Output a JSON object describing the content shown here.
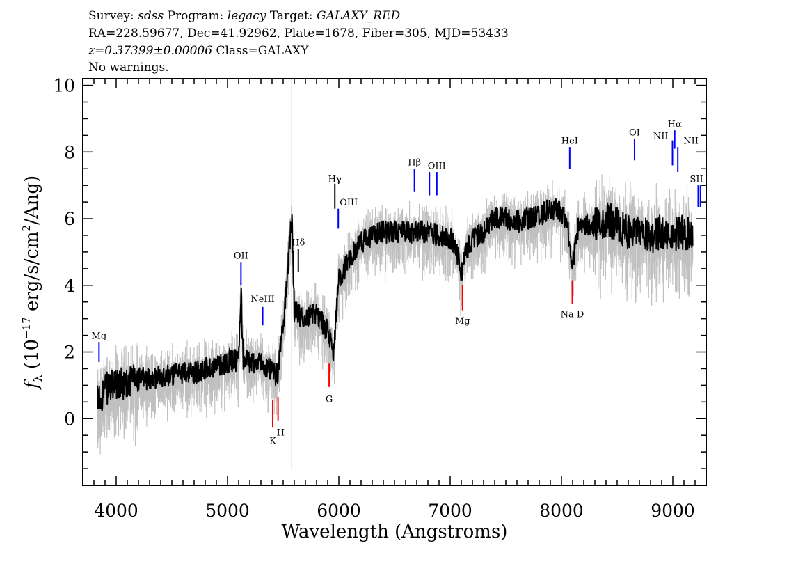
{
  "header": {
    "survey_label": "Survey: ",
    "survey": "sdss",
    "program_label": " Program: ",
    "program": "legacy",
    "target_label": " Target: ",
    "target": "GALAXY_RED",
    "coords": "RA=228.59677, Dec=41.92962, Plate=1678, Fiber=305, MJD=53433",
    "redshift": "z=0.37399±0.00006",
    "class": " Class=GALAXY",
    "warnings": "No warnings."
  },
  "chart_data": {
    "type": "line",
    "xlabel": "Wavelength (Angstroms)",
    "ylabel": {
      "f": "f",
      "sub": "λ",
      "pre": " (10",
      "exp": "−17",
      "mid": " erg/s/cm",
      "exp2": "2",
      "post": "/Ang)"
    },
    "xlim": [
      3700,
      9300
    ],
    "ylim": [
      -2,
      10.2
    ],
    "xticks": [
      4000,
      5000,
      6000,
      7000,
      8000,
      9000
    ],
    "yticks": [
      0,
      2,
      4,
      6,
      8,
      10
    ],
    "grid": false,
    "colors": {
      "flux": "#000000",
      "error": "#c0c0c0",
      "emission": "#0000ff",
      "absorption": "#ff0000",
      "other": "#000000"
    },
    "series": [
      {
        "role": "flux",
        "x": [
          3830,
          3900,
          4000,
          4100,
          4200,
          4300,
          4400,
          4500,
          4600,
          4700,
          4800,
          4900,
          5000,
          5100,
          5121,
          5140,
          5200,
          5300,
          5400,
          5450,
          5500,
          5577,
          5600,
          5700,
          5800,
          5900,
          5950,
          6000,
          6100,
          6200,
          6300,
          6400,
          6500,
          6600,
          6700,
          6800,
          6900,
          7000,
          7050,
          7100,
          7150,
          7200,
          7300,
          7400,
          7500,
          7600,
          7700,
          7800,
          7900,
          8000,
          8050,
          8100,
          8150,
          8200,
          8300,
          8400,
          8500,
          8600,
          8700,
          8800,
          8900,
          9000,
          9100,
          9180
        ],
        "y": [
          0.5,
          0.9,
          1.0,
          1.1,
          1.2,
          1.2,
          1.3,
          1.3,
          1.4,
          1.4,
          1.5,
          1.6,
          1.7,
          1.8,
          3.9,
          1.8,
          1.7,
          1.7,
          1.4,
          1.3,
          2.8,
          6.1,
          3.2,
          3.0,
          3.2,
          2.6,
          2.0,
          4.2,
          4.8,
          5.3,
          5.5,
          5.6,
          5.6,
          5.6,
          5.6,
          5.6,
          5.5,
          5.4,
          5.2,
          4.4,
          5.1,
          5.4,
          5.6,
          6.0,
          6.0,
          5.9,
          6.0,
          6.1,
          6.3,
          6.2,
          5.8,
          4.6,
          5.7,
          5.8,
          5.8,
          6.0,
          5.8,
          5.6,
          5.7,
          5.5,
          5.6,
          5.5,
          5.6,
          5.5
        ]
      }
    ],
    "lines": [
      {
        "label": "Mg",
        "wave": 3846,
        "kind": "emission",
        "top": 2.3,
        "bottom": 1.7,
        "label_y": 2.5
      },
      {
        "label": "OII",
        "wave": 5121,
        "kind": "emission",
        "top": 4.7,
        "bottom": 4.0,
        "label_y": 4.9
      },
      {
        "label": "NeIII",
        "wave": 5316,
        "kind": "emission",
        "top": 3.35,
        "bottom": 2.8,
        "label_y": 3.6
      },
      {
        "label": "K",
        "wave": 5406,
        "kind": "absorption",
        "top": 0.55,
        "bottom": -0.25,
        "label_y": -0.65
      },
      {
        "label": "H",
        "wave": 5454,
        "kind": "absorption",
        "top": 0.65,
        "bottom": -0.05,
        "label_y": -0.4
      },
      {
        "label": "Hδ",
        "wave": 5636,
        "kind": "other",
        "top": 5.1,
        "bottom": 4.4,
        "label_y": 5.3
      },
      {
        "label": "G",
        "wave": 5913,
        "kind": "absorption",
        "top": 1.65,
        "bottom": 0.95,
        "label_y": 0.6
      },
      {
        "label": "Hγ",
        "wave": 5964,
        "kind": "other",
        "top": 7.05,
        "bottom": 6.3,
        "label_y": 7.2
      },
      {
        "label": "OIII",
        "wave": 5995,
        "kind": "emission",
        "top": 6.3,
        "bottom": 5.7,
        "label_y": 6.5
      },
      {
        "label": "Hβ",
        "wave": 6679,
        "kind": "emission",
        "top": 7.5,
        "bottom": 6.8,
        "label_y": 7.7
      },
      {
        "label": "",
        "wave": 6814,
        "kind": "emission",
        "top": 7.4,
        "bottom": 6.7,
        "label_y": 7.6
      },
      {
        "label": "OIII",
        "wave": 6880,
        "kind": "emission",
        "top": 7.4,
        "bottom": 6.7,
        "label_y": 7.6
      },
      {
        "label": "Mg",
        "wave": 7111,
        "kind": "absorption",
        "top": 4.0,
        "bottom": 3.25,
        "label_y": 2.95
      },
      {
        "label": "HeI",
        "wave": 8074,
        "kind": "emission",
        "top": 8.15,
        "bottom": 7.5,
        "label_y": 8.35
      },
      {
        "label": "Na D",
        "wave": 8097,
        "kind": "absorption",
        "top": 4.15,
        "bottom": 3.45,
        "label_y": 3.15
      },
      {
        "label": "OI",
        "wave": 8656,
        "kind": "emission",
        "top": 8.4,
        "bottom": 7.75,
        "label_y": 8.6
      },
      {
        "label": "NII",
        "wave": 8997,
        "kind": "emission",
        "top": 8.35,
        "bottom": 7.6,
        "label_y": 8.5
      },
      {
        "label": "Hα",
        "wave": 9017,
        "kind": "emission",
        "top": 8.65,
        "bottom": 8.1,
        "label_y": 8.85
      },
      {
        "label": "NII",
        "wave": 9045,
        "kind": "emission",
        "top": 8.15,
        "bottom": 7.4,
        "label_y": 8.35
      },
      {
        "label": "SII",
        "wave": 9228,
        "kind": "emission",
        "top": 7.0,
        "bottom": 6.35,
        "label_y": 7.2
      },
      {
        "label": "",
        "wave": 9248,
        "kind": "emission",
        "top": 7.0,
        "bottom": 6.35,
        "label_y": 7.2
      }
    ]
  }
}
